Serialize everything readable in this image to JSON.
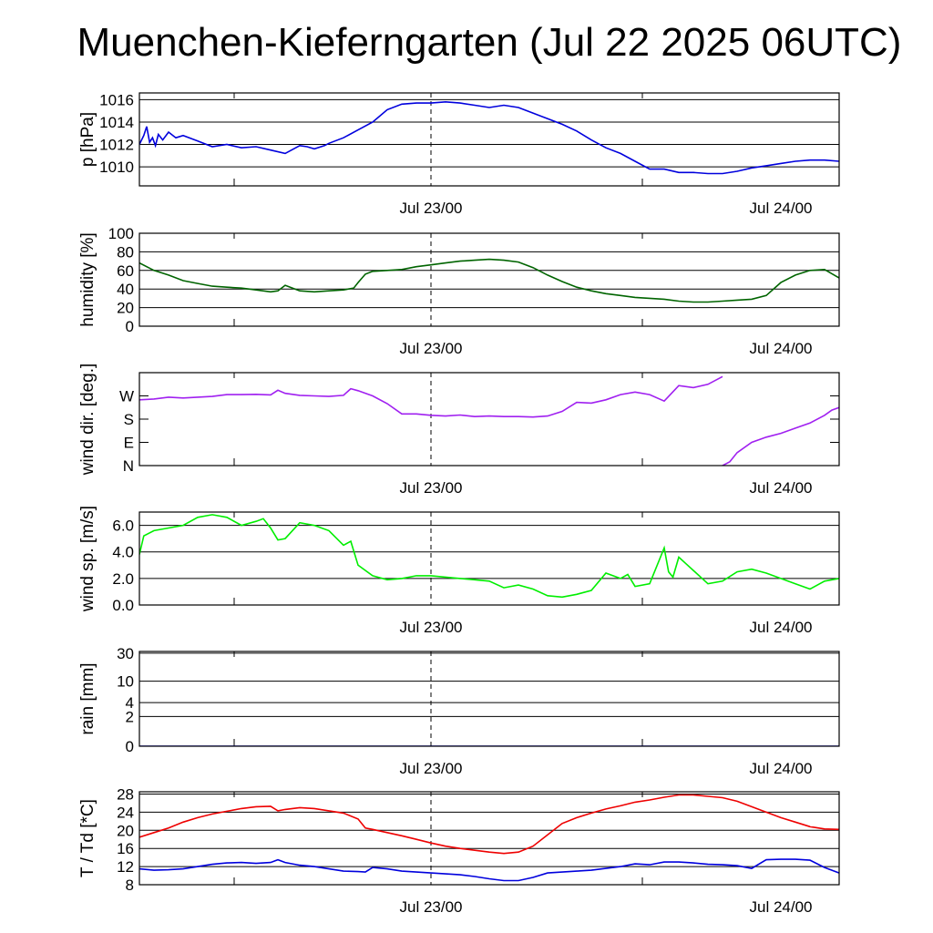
{
  "title": "Muenchen-Kieferngarten (Jul 22 2025 06UTC)",
  "x_labels": [
    "Jul 23/00",
    "Jul 24/00"
  ],
  "chart_data": [
    {
      "type": "line",
      "ylabel": "p [hPa]",
      "ylim": [
        1008.3,
        1016.6
      ],
      "yticks": [
        1010,
        1012,
        1014,
        1016
      ],
      "ytick_labels": [
        "1010",
        "1012",
        "1014",
        "1016"
      ],
      "grid": true,
      "series": [
        {
          "color": "#0000dd",
          "x": [
            0,
            0.3,
            0.5,
            0.7,
            0.9,
            1.1,
            1.3,
            1.6,
            2,
            2.5,
            3,
            4,
            5,
            6,
            7,
            8,
            9,
            10,
            11,
            11.5,
            12,
            12.7,
            13,
            14,
            15,
            16,
            17,
            18,
            19,
            20,
            21,
            22,
            23,
            24,
            25,
            26,
            27,
            28,
            29,
            30,
            31,
            32,
            33,
            34,
            35,
            36,
            37,
            38,
            39,
            40,
            41,
            42,
            43,
            44,
            45,
            46,
            47,
            48
          ],
          "y": [
            1012.0,
            1012.8,
            1013.6,
            1012.2,
            1012.6,
            1011.9,
            1012.9,
            1012.4,
            1013.1,
            1012.6,
            1012.8,
            1012.3,
            1011.8,
            1012.0,
            1011.7,
            1011.8,
            1011.5,
            1011.2,
            1011.9,
            1011.8,
            1011.6,
            1011.9,
            1012.1,
            1012.6,
            1013.3,
            1014.0,
            1015.1,
            1015.6,
            1015.7,
            1015.7,
            1015.8,
            1015.7,
            1015.5,
            1015.3,
            1015.5,
            1015.3,
            1014.8,
            1014.3,
            1013.8,
            1013.2,
            1012.4,
            1011.7,
            1011.2,
            1010.5,
            1009.8,
            1009.8,
            1009.5,
            1009.5,
            1009.4,
            1009.4,
            1009.6,
            1009.9,
            1010.1,
            1010.3,
            1010.5,
            1010.6,
            1010.6,
            1010.5
          ]
        }
      ]
    },
    {
      "type": "line",
      "ylabel": "humidity [%]",
      "ylim": [
        0,
        100
      ],
      "yticks": [
        0,
        20,
        40,
        60,
        80,
        100
      ],
      "ytick_labels": [
        "0",
        "20",
        "40",
        "60",
        "80",
        "100"
      ],
      "grid": true,
      "series": [
        {
          "color": "#006400",
          "x": [
            0,
            1,
            2,
            3,
            4,
            5,
            6,
            7,
            8,
            9,
            9.5,
            10,
            11,
            12,
            13,
            14,
            14.7,
            15,
            15.5,
            16,
            17,
            18,
            19,
            20,
            21,
            22,
            23,
            24,
            25,
            26,
            27,
            28,
            29,
            30,
            31,
            32,
            33,
            34,
            35,
            36,
            37,
            38,
            39,
            40,
            41,
            42,
            43,
            44,
            45,
            46,
            47,
            48
          ],
          "y": [
            68,
            60,
            55,
            49,
            46,
            43,
            42,
            41,
            39,
            37,
            38,
            44,
            38,
            37,
            38,
            39,
            41,
            47,
            56,
            59,
            60,
            61,
            64,
            66,
            68,
            70,
            71,
            72,
            71,
            69,
            63,
            55,
            48,
            42,
            38,
            35,
            33,
            31,
            30,
            29,
            27,
            26,
            26,
            27,
            28,
            29,
            33,
            47,
            55,
            60,
            61,
            52
          ]
        }
      ]
    },
    {
      "type": "line",
      "ylabel": "wind dir. [deg.]",
      "ylim": [
        0,
        360
      ],
      "yticks": [
        0,
        90,
        180,
        270
      ],
      "ytick_labels": [
        "N",
        "E",
        "S",
        "W"
      ],
      "grid": false,
      "series": [
        {
          "color": "#a020f0",
          "x": [
            0,
            1,
            2,
            3,
            4,
            5,
            6,
            7,
            8,
            9,
            9.5,
            10,
            11,
            12,
            13,
            14,
            14.5,
            15,
            16,
            17,
            18,
            19,
            20,
            21,
            22,
            23,
            24,
            25,
            26,
            27,
            28,
            29,
            30,
            31,
            32,
            33,
            34,
            35,
            36,
            36.5,
            37,
            38,
            39,
            40
          ],
          "y": [
            255,
            258,
            265,
            262,
            265,
            268,
            275,
            275,
            276,
            274,
            292,
            280,
            272,
            270,
            268,
            272,
            298,
            290,
            270,
            240,
            200,
            200,
            195,
            192,
            196,
            190,
            192,
            190,
            190,
            188,
            192,
            210,
            245,
            242,
            255,
            275,
            285,
            275,
            250,
            280,
            310,
            302,
            315,
            345
          ]
        },
        {
          "color": "#a020f0",
          "x": [
            40,
            40.5,
            41,
            42,
            43,
            44,
            45,
            46,
            47,
            47.5,
            48
          ],
          "y": [
            0,
            15,
            50,
            90,
            110,
            125,
            145,
            165,
            195,
            215,
            225
          ]
        }
      ]
    },
    {
      "type": "line",
      "ylabel": "wind sp. [m/s]",
      "ylim": [
        0,
        7
      ],
      "yticks": [
        0,
        2,
        4,
        6
      ],
      "ytick_labels": [
        "0.0",
        "2.0",
        "4.0",
        "6.0"
      ],
      "grid": true,
      "series": [
        {
          "color": "#00ee00",
          "x": [
            0,
            0.3,
            1,
            2,
            3,
            4,
            5,
            6,
            7,
            8,
            8.5,
            9,
            9.5,
            10,
            11,
            12,
            13,
            14,
            14.5,
            15,
            16,
            17,
            18,
            19,
            20,
            21,
            22,
            23,
            24,
            25,
            26,
            27,
            28,
            29,
            30,
            31,
            32,
            33,
            33.5,
            34,
            35,
            36,
            36.3,
            36.6,
            37,
            37.5,
            38,
            39,
            40,
            41,
            42,
            43,
            44,
            45,
            46,
            47,
            48
          ],
          "y": [
            3.8,
            5.2,
            5.6,
            5.8,
            6.0,
            6.6,
            6.8,
            6.6,
            6.0,
            6.3,
            6.5,
            5.8,
            4.9,
            5.0,
            6.2,
            6.0,
            5.6,
            4.5,
            4.8,
            3.0,
            2.2,
            1.9,
            2.0,
            2.2,
            2.2,
            2.1,
            2.0,
            1.9,
            1.8,
            1.3,
            1.5,
            1.2,
            0.7,
            0.6,
            0.8,
            1.1,
            2.4,
            2.0,
            2.3,
            1.4,
            1.6,
            4.3,
            2.5,
            2.1,
            3.6,
            3.1,
            2.6,
            1.6,
            1.8,
            2.5,
            2.7,
            2.4,
            2.0,
            1.6,
            1.2,
            1.8,
            2.0
          ]
        }
      ]
    },
    {
      "type": "line",
      "ylabel": "rain [mm]",
      "ylim": [
        0,
        32
      ],
      "scale": "pseudo-log",
      "yticks": [
        0,
        2,
        4,
        10,
        30
      ],
      "ytick_labels": [
        "0",
        "2",
        "4",
        "10",
        "30"
      ],
      "grid": true,
      "series": [
        {
          "color": "#0000dd",
          "x": [
            0,
            48
          ],
          "y": [
            0,
            0
          ]
        }
      ]
    },
    {
      "type": "line",
      "ylabel": "T / Td [*C]",
      "ylim": [
        8,
        28.5
      ],
      "yticks": [
        8,
        12,
        16,
        20,
        24,
        28
      ],
      "ytick_labels": [
        "8",
        "12",
        "16",
        "20",
        "24",
        "28"
      ],
      "grid": true,
      "series": [
        {
          "color": "#ee0000",
          "x": [
            0,
            1,
            2,
            3,
            4,
            5,
            6,
            7,
            8,
            9,
            9.5,
            10,
            11,
            12,
            13,
            14,
            15,
            15.5,
            16,
            17,
            18,
            19,
            20,
            21,
            22,
            23,
            24,
            25,
            26,
            27,
            28,
            29,
            30,
            31,
            32,
            33,
            34,
            35,
            36,
            37,
            38,
            39,
            40,
            41,
            42,
            43,
            44,
            45,
            46,
            47,
            48
          ],
          "y": [
            18.5,
            19.5,
            20.5,
            21.8,
            22.8,
            23.6,
            24.2,
            24.8,
            25.2,
            25.3,
            24.3,
            24.6,
            25.0,
            24.8,
            24.3,
            23.8,
            22.5,
            20.5,
            20.2,
            19.5,
            18.8,
            18.0,
            17.2,
            16.5,
            16.0,
            15.6,
            15.2,
            14.9,
            15.2,
            16.5,
            19.0,
            21.5,
            22.8,
            23.8,
            24.7,
            25.4,
            26.2,
            26.7,
            27.3,
            27.8,
            27.8,
            27.5,
            27.2,
            26.4,
            25.2,
            24.0,
            22.8,
            21.8,
            20.8,
            20.3,
            20.2
          ]
        },
        {
          "color": "#0000dd",
          "x": [
            0,
            1,
            2,
            3,
            4,
            5,
            6,
            7,
            8,
            9,
            9.5,
            10,
            11,
            12,
            13,
            14,
            15,
            15.5,
            16,
            17,
            18,
            19,
            20,
            21,
            22,
            23,
            24,
            25,
            26,
            27,
            28,
            29,
            30,
            31,
            32,
            33,
            34,
            35,
            36,
            37,
            38,
            39,
            40,
            41,
            42,
            43,
            44,
            45,
            46,
            47,
            48
          ],
          "y": [
            11.5,
            11.2,
            11.3,
            11.5,
            12.0,
            12.5,
            12.8,
            12.9,
            12.7,
            12.9,
            13.5,
            12.9,
            12.3,
            12.0,
            11.5,
            11.0,
            10.9,
            10.8,
            11.8,
            11.5,
            11.0,
            10.8,
            10.6,
            10.4,
            10.2,
            9.8,
            9.3,
            8.9,
            8.9,
            9.6,
            10.6,
            10.8,
            11.0,
            11.2,
            11.6,
            12.0,
            12.6,
            12.4,
            13.0,
            13.0,
            12.8,
            12.5,
            12.4,
            12.2,
            11.6,
            13.5,
            13.6,
            13.6,
            13.4,
            11.8,
            10.6
          ]
        }
      ]
    }
  ]
}
